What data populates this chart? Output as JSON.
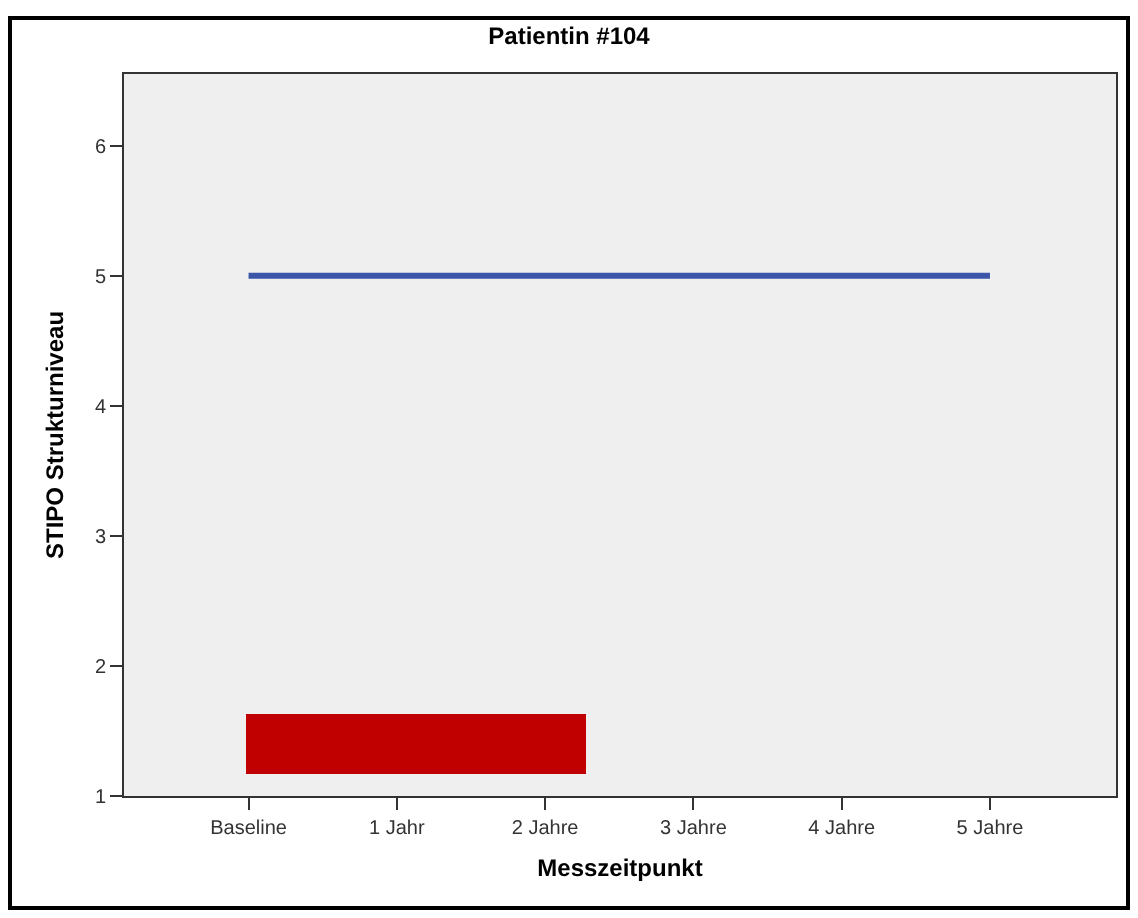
{
  "chart_data": {
    "type": "line",
    "title": "Patientin #104",
    "xlabel": "Messzeitpunkt",
    "ylabel": "STIPO Strukturniveau",
    "categories": [
      "Baseline",
      "1 Jahr",
      "2 Jahre",
      "3 Jahre",
      "4 Jahre",
      "5 Jahre"
    ],
    "series": [
      {
        "color": "#3b55a8",
        "values": [
          5,
          5,
          5,
          5,
          5,
          5
        ]
      }
    ],
    "ylim": [
      1,
      6.55
    ],
    "yticks": [
      1,
      2,
      3,
      4,
      5,
      6
    ],
    "grid": false,
    "marker": "none",
    "line_style": "solid"
  }
}
